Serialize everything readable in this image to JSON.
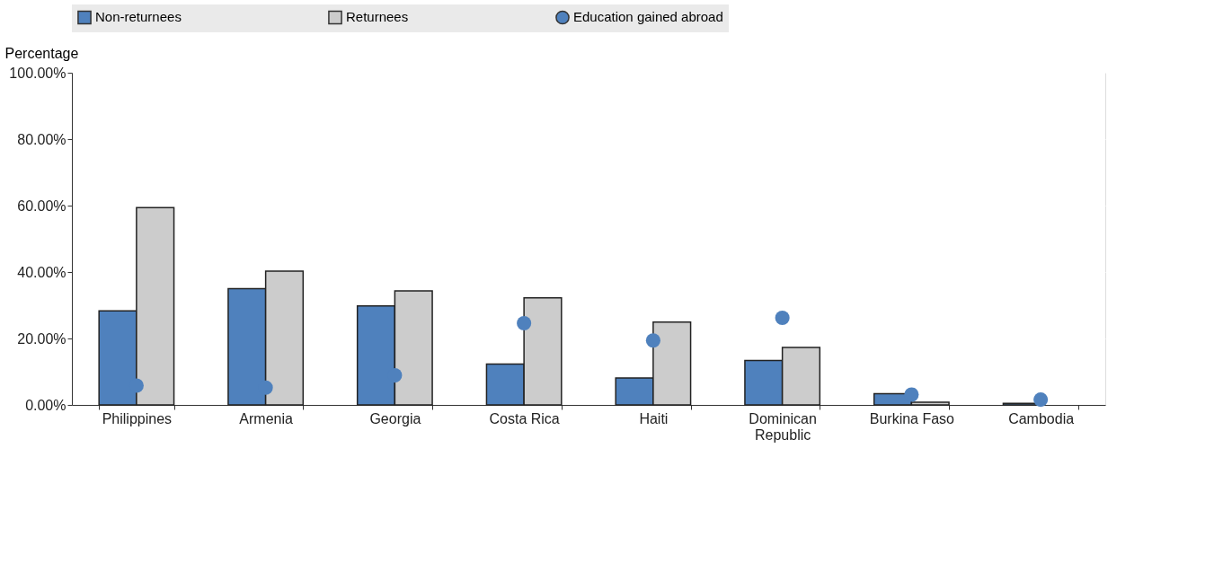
{
  "chart_data": {
    "type": "bar",
    "ylabel": "Percentage",
    "categories": [
      "Philippines",
      "Armenia",
      "Georgia",
      "Costa Rica",
      "Haiti",
      "Dominican Republic",
      "Burkina Faso",
      "Cambodia"
    ],
    "series": [
      {
        "name": "Non-returnees",
        "color": "#4f81bd",
        "values": [
          28.3,
          35.0,
          29.8,
          12.3,
          8.1,
          13.4,
          3.4,
          0.5
        ]
      },
      {
        "name": "Returnees",
        "color": "#cccccc",
        "values": [
          59.4,
          40.3,
          34.3,
          32.2,
          24.9,
          17.3,
          0.8,
          null
        ]
      },
      {
        "name": "Education gained abroad",
        "type": "scatter",
        "color": "#4f81bd",
        "values": [
          5.8,
          5.2,
          8.9,
          24.6,
          19.4,
          26.2,
          3.1,
          1.6
        ]
      }
    ],
    "ylim": [
      0,
      100
    ],
    "yticks": [
      {
        "value": 0,
        "label": "0.00%"
      },
      {
        "value": 20,
        "label": "20.00%"
      },
      {
        "value": 40,
        "label": "40.00%"
      },
      {
        "value": 60,
        "label": "60.00%"
      },
      {
        "value": 80,
        "label": "80.00%"
      },
      {
        "value": 100,
        "label": "100.00%"
      }
    ],
    "grid": "y",
    "legend": "top",
    "marker": "circle"
  }
}
